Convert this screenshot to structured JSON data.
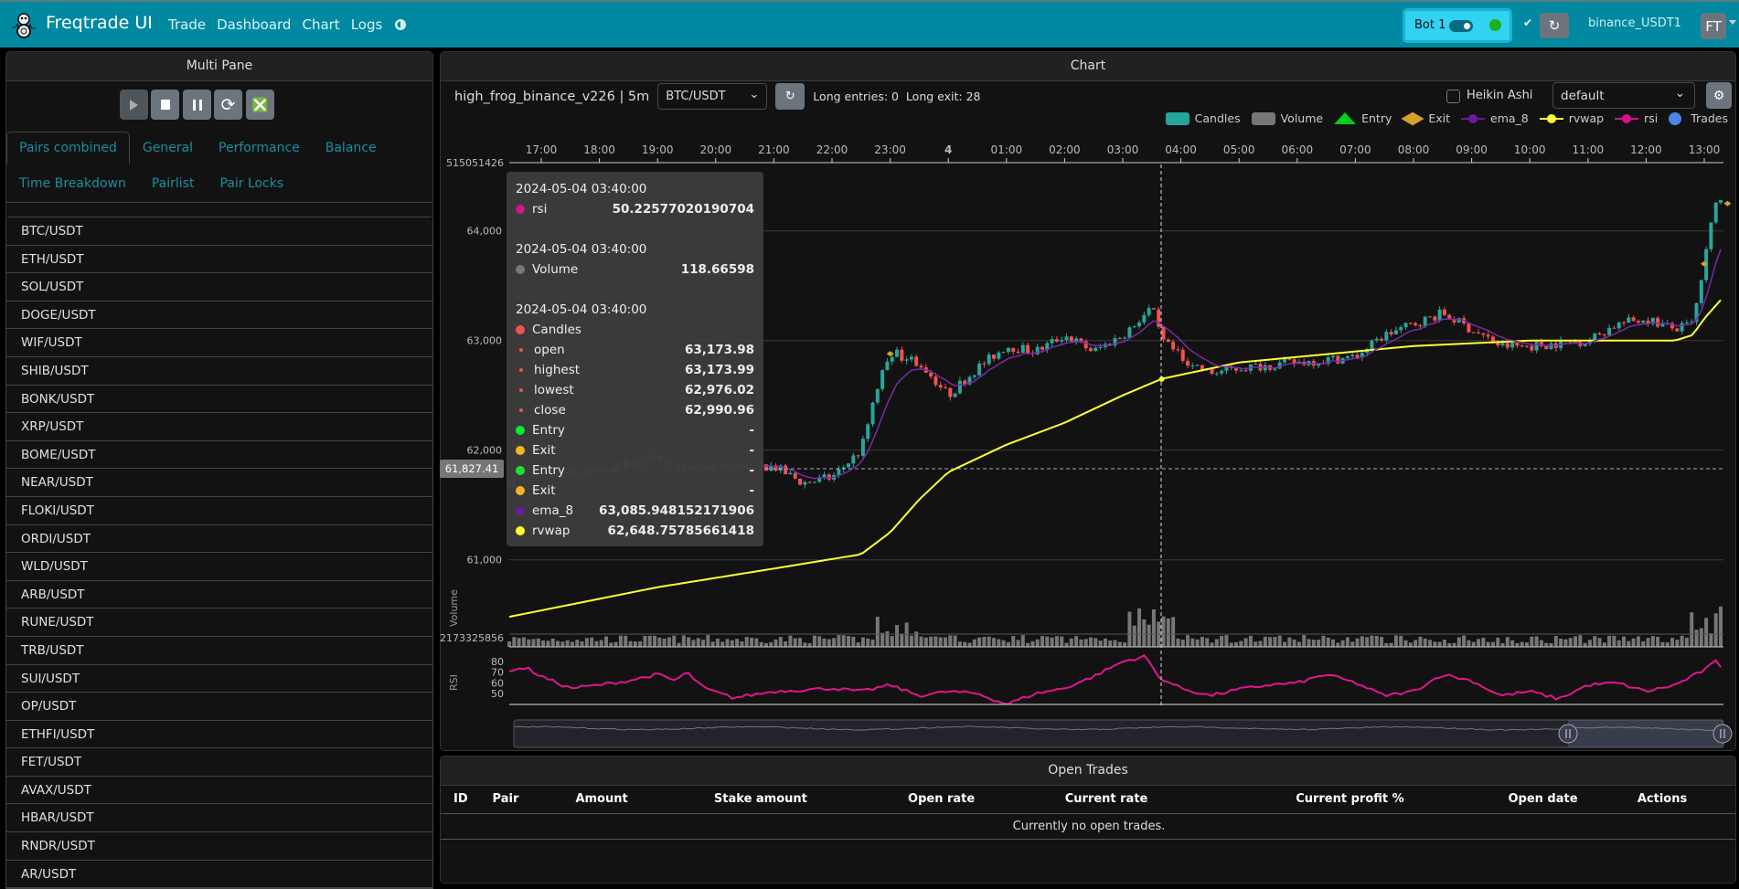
{
  "navbar": {
    "brand": "Freqtrade UI",
    "links": [
      "Trade",
      "Dashboard",
      "Chart",
      "Logs"
    ],
    "bot_name": "Bot 1",
    "bot_status_color": "#1db01d",
    "exchange": "binance_USDT1",
    "avatar": "FT"
  },
  "left_panel": {
    "title": "Multi Pane",
    "controls": [
      "play-icon",
      "stop-icon",
      "pause-icon",
      "reload-icon",
      "force-exit-icon"
    ],
    "tabs_row1": [
      "Pairs combined",
      "General",
      "Performance",
      "Balance"
    ],
    "tabs_row2": [
      "Time Breakdown",
      "Pairlist",
      "Pair Locks"
    ],
    "active_tab": "Pairs combined",
    "pairs": [
      "BTC/USDT",
      "ETH/USDT",
      "SOL/USDT",
      "DOGE/USDT",
      "WIF/USDT",
      "SHIB/USDT",
      "BONK/USDT",
      "XRP/USDT",
      "BOME/USDT",
      "NEAR/USDT",
      "FLOKI/USDT",
      "ORDI/USDT",
      "WLD/USDT",
      "ARB/USDT",
      "RUNE/USDT",
      "TRB/USDT",
      "SUI/USDT",
      "OP/USDT",
      "ETHFI/USDT",
      "FET/USDT",
      "AVAX/USDT",
      "HBAR/USDT",
      "RNDR/USDT",
      "AR/USDT"
    ]
  },
  "chart_panel": {
    "title": "Chart",
    "strategy": "high_frog_binance_v226 | 5m",
    "pair": "BTC/USDT",
    "signals": "Long entries: 0  Long exit: 28",
    "heikin_ashi_label": "Heikin Ashi",
    "heikin_ashi_checked": false,
    "plot_config": "default",
    "legend": [
      {
        "label": "Candles",
        "color": "#26a69a"
      },
      {
        "label": "Volume",
        "color": "#777777"
      },
      {
        "label": "Entry",
        "color": "#00cc22"
      },
      {
        "label": "Exit",
        "color": "#d4a12a"
      },
      {
        "label": "ema_8",
        "color": "#6a1b9a"
      },
      {
        "label": "rvwap",
        "color": "#ffff33"
      },
      {
        "label": "rsi",
        "color": "#d4148a"
      },
      {
        "label": "Trades",
        "color": "#4a86e8"
      }
    ],
    "crosshair_price": "61,827.41",
    "tooltip": {
      "rsi": {
        "date": "2024-05-04 03:40:00",
        "label": "rsi",
        "value": "50.22577020190704"
      },
      "volume": {
        "date": "2024-05-04 03:40:00",
        "label": "Volume",
        "value": "118.66598"
      },
      "candles": {
        "date": "2024-05-04 03:40:00",
        "label": "Candles",
        "open_label": "open",
        "open": "63,173.98",
        "high_label": "highest",
        "high": "63,173.99",
        "low_label": "lowest",
        "low": "62,976.02",
        "close_label": "close",
        "close": "62,990.96"
      },
      "entry1": {
        "label": "Entry",
        "value": "-"
      },
      "exit1": {
        "label": "Exit",
        "value": "-"
      },
      "entry2": {
        "label": "Entry",
        "value": "-"
      },
      "exit2": {
        "label": "Exit",
        "value": "-"
      },
      "ema_8": {
        "label": "ema_8",
        "value": "63,085.948152171906"
      },
      "rvwap": {
        "label": "rvwap",
        "value": "62,648.75785661418"
      }
    }
  },
  "chart_data": {
    "type": "candlestick",
    "x_ticks": [
      "17:00",
      "18:00",
      "19:00",
      "20:00",
      "21:00",
      "22:00",
      "23:00",
      "4",
      "01:00",
      "02:00",
      "03:00",
      "04:00",
      "05:00",
      "06:00",
      "07:00",
      "08:00",
      "09:00",
      "10:00",
      "11:00",
      "12:00",
      "13:00"
    ],
    "y_ticks": [
      "64,000",
      "63,000",
      "62,000",
      "61,000"
    ],
    "y_top_label": "515051426",
    "volume_label": "Volume",
    "volume_tick": "2173325856",
    "rsi_label": "RSI",
    "rsi_ticks": [
      "80",
      "70",
      "60",
      "50"
    ],
    "price_keypoints": [
      [
        "16:27",
        61700
      ],
      [
        "17:00",
        61750
      ],
      [
        "18:00",
        61800
      ],
      [
        "19:00",
        61950
      ],
      [
        "19:30",
        61800
      ],
      [
        "20:00",
        61850
      ],
      [
        "21:00",
        61850
      ],
      [
        "21:30",
        61700
      ],
      [
        "22:00",
        61750
      ],
      [
        "22:30",
        62000
      ],
      [
        "22:48",
        62600
      ],
      [
        "23:00",
        62900
      ],
      [
        "23:30",
        62800
      ],
      [
        "00:00",
        62500
      ],
      [
        "00:30",
        62750
      ],
      [
        "01:00",
        62950
      ],
      [
        "01:30",
        62900
      ],
      [
        "02:00",
        63050
      ],
      [
        "02:30",
        62900
      ],
      [
        "03:00",
        63050
      ],
      [
        "03:30",
        63300
      ],
      [
        "03:40",
        63000
      ],
      [
        "04:00",
        62850
      ],
      [
        "04:30",
        62700
      ],
      [
        "05:00",
        62750
      ],
      [
        "06:00",
        62800
      ],
      [
        "07:00",
        62850
      ],
      [
        "07:30",
        63050
      ],
      [
        "08:00",
        63150
      ],
      [
        "08:30",
        63250
      ],
      [
        "09:00",
        63100
      ],
      [
        "09:30",
        62950
      ],
      [
        "10:00",
        62950
      ],
      [
        "11:00",
        63000
      ],
      [
        "11:30",
        63150
      ],
      [
        "12:00",
        63200
      ],
      [
        "12:30",
        63100
      ],
      [
        "12:48",
        63150
      ],
      [
        "13:00",
        63700
      ],
      [
        "13:12",
        64300
      ],
      [
        "13:20",
        64250
      ]
    ],
    "rvwap_keypoints": [
      [
        "16:27",
        60480
      ],
      [
        "19:00",
        60750
      ],
      [
        "21:00",
        60920
      ],
      [
        "22:30",
        61050
      ],
      [
        "23:00",
        61250
      ],
      [
        "23:30",
        61550
      ],
      [
        "00:00",
        61800
      ],
      [
        "01:00",
        62050
      ],
      [
        "02:00",
        62250
      ],
      [
        "03:00",
        62500
      ],
      [
        "03:40",
        62650
      ],
      [
        "05:00",
        62800
      ],
      [
        "07:00",
        62900
      ],
      [
        "08:00",
        62950
      ],
      [
        "10:00",
        63000
      ],
      [
        "12:30",
        63000
      ],
      [
        "12:48",
        63050
      ],
      [
        "13:00",
        63200
      ],
      [
        "13:20",
        63400
      ]
    ],
    "rsi_keypoints": [
      [
        "16:27",
        72
      ],
      [
        "16:45",
        74
      ],
      [
        "17:00",
        66
      ],
      [
        "17:30",
        55
      ],
      [
        "18:00",
        58
      ],
      [
        "18:30",
        62
      ],
      [
        "19:00",
        68
      ],
      [
        "19:18",
        62
      ],
      [
        "19:30",
        70
      ],
      [
        "19:48",
        55
      ],
      [
        "20:18",
        46
      ],
      [
        "21:00",
        52
      ],
      [
        "22:00",
        55
      ],
      [
        "22:30",
        52
      ],
      [
        "23:00",
        58
      ],
      [
        "23:30",
        48
      ],
      [
        "00:00",
        52
      ],
      [
        "00:30",
        50
      ],
      [
        "01:00",
        40
      ],
      [
        "01:30",
        50
      ],
      [
        "02:00",
        55
      ],
      [
        "02:30",
        66
      ],
      [
        "03:00",
        80
      ],
      [
        "03:24",
        85
      ],
      [
        "03:36",
        66
      ],
      [
        "04:00",
        55
      ],
      [
        "04:30",
        48
      ],
      [
        "05:00",
        54
      ],
      [
        "05:30",
        58
      ],
      [
        "06:00",
        60
      ],
      [
        "06:30",
        68
      ],
      [
        "07:00",
        60
      ],
      [
        "07:30",
        48
      ],
      [
        "08:00",
        52
      ],
      [
        "08:30",
        68
      ],
      [
        "09:00",
        62
      ],
      [
        "09:30",
        48
      ],
      [
        "10:00",
        52
      ],
      [
        "10:30",
        45
      ],
      [
        "11:00",
        58
      ],
      [
        "11:30",
        60
      ],
      [
        "12:00",
        52
      ],
      [
        "12:30",
        58
      ],
      [
        "13:00",
        72
      ],
      [
        "13:12",
        80
      ],
      [
        "13:20",
        73
      ]
    ]
  },
  "open_trades": {
    "title": "Open Trades",
    "columns": [
      "ID",
      "Pair",
      "Amount",
      "Stake amount",
      "Open rate",
      "Current rate",
      "Current profit %",
      "Open date",
      "Actions"
    ],
    "empty_text": "Currently no open trades."
  }
}
